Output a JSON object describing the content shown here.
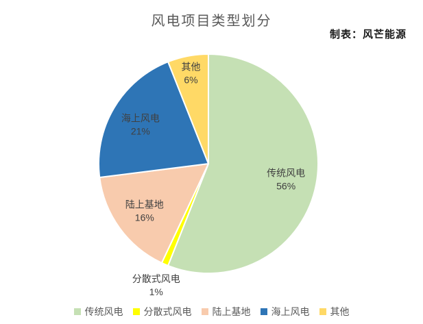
{
  "title": "风电项目类型划分",
  "credit": "制表：风芒能源",
  "chart_data": {
    "type": "pie",
    "title": "风电项目类型划分",
    "annotation": "制表：风芒能源",
    "start_angle_deg": 0,
    "direction": "clockwise",
    "legend_position": "bottom",
    "data_labels": "name_and_percent",
    "unit": "%",
    "slices": [
      {
        "label": "传统风电",
        "value": 56,
        "color": "#c5e0b4",
        "pct_label": "56%"
      },
      {
        "label": "分散式风电",
        "value": 1,
        "color": "#ffff00",
        "pct_label": "1%"
      },
      {
        "label": "陆上基地",
        "value": 16,
        "color": "#f8cbad",
        "pct_label": "16%"
      },
      {
        "label": "海上风电",
        "value": 21,
        "color": "#2e75b6",
        "pct_label": "21%"
      },
      {
        "label": "其他",
        "value": 6,
        "color": "#ffd966",
        "pct_label": "6%"
      }
    ],
    "label_text_color": "#404040",
    "slice_border_color": "#ffffff"
  }
}
